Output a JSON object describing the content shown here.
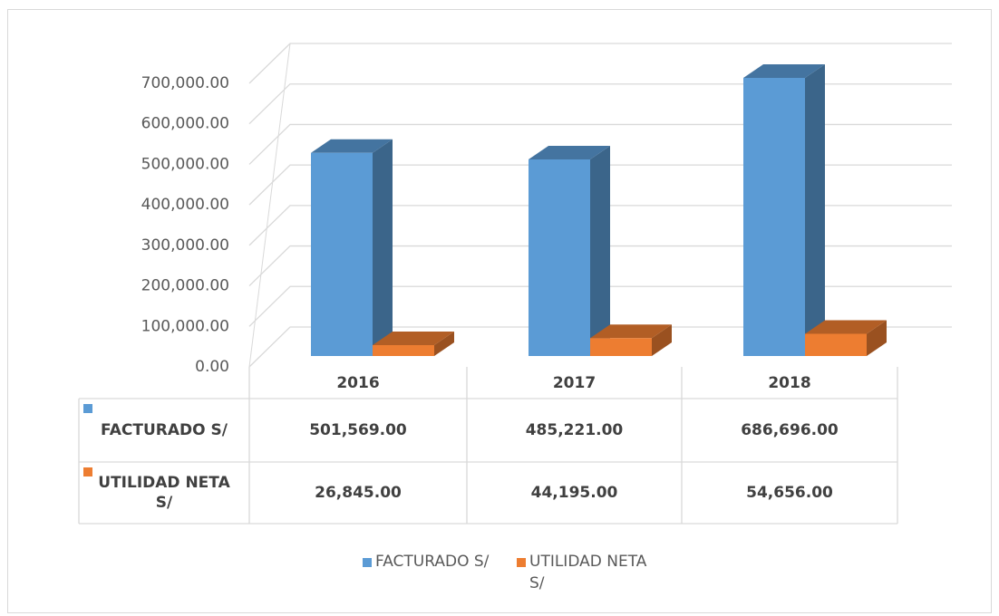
{
  "chart_data": {
    "type": "bar3d",
    "categories": [
      "2016",
      "2017",
      "2018"
    ],
    "series": [
      {
        "name": "FACTURADO S/",
        "color": "#5b9bd5",
        "values": [
          501569,
          485221,
          686696
        ],
        "value_labels": [
          "501,569.00",
          "485,221.00",
          "686,696.00"
        ]
      },
      {
        "name": "UTILIDAD NETA S/",
        "color": "#ed7d31",
        "values": [
          26845,
          44195,
          54656
        ],
        "value_labels": [
          "26,845.00",
          "44,195.00",
          "54,656.00"
        ]
      }
    ],
    "ylim": [
      0,
      700000
    ],
    "yticks": [
      {
        "value": 0,
        "label": "0.00"
      },
      {
        "value": 100000,
        "label": "100,000.00"
      },
      {
        "value": 200000,
        "label": "200,000.00"
      },
      {
        "value": 300000,
        "label": "300,000.00"
      },
      {
        "value": 400000,
        "label": "400,000.00"
      },
      {
        "value": 500000,
        "label": "500,000.00"
      },
      {
        "value": 600000,
        "label": "600,000.00"
      },
      {
        "value": 700000,
        "label": "700,000.00"
      }
    ],
    "grid": true,
    "legend": "bottom"
  }
}
